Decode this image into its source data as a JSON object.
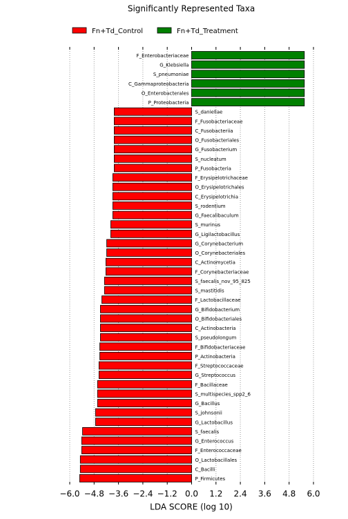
{
  "chart_data": {
    "type": "barh",
    "title": "Significantly Represented Taxa",
    "xlabel": "LDA SCORE (log 10)",
    "categories": [
      "F_Enterobacteriaceae",
      "G_Klebsiella",
      "S_pneumoniae",
      "C_Gammaproteobacteria",
      "O_Enterobacterales",
      "P_Proteobacteria",
      "S_daniellae",
      "F_Fusobacteriaceae",
      "C_Fusobacteriia",
      "O_Fusobacteriales",
      "G_Fusobacterium",
      "S_nucleatum",
      "P_Fusobacteria",
      "F_Erysipelotrichaceae",
      "O_Erysipelotrichales",
      "C_Erysipelotrichia",
      "S_rodentium",
      "G_Faecalibaculum",
      "S_murinus",
      "G_Ligilactobacillus",
      "G_Corynebacterium",
      "O_Corynebacteriales",
      "C_Actinomycetia",
      "F_Corynebacteriaceae",
      "S_faecalis_nov_95_825",
      "S_mastitidis",
      "F_Lactobacillaceae",
      "G_Bifidobacterium",
      "O_Bifidobacteriales",
      "C_Actinobacteria",
      "S_pseudolongum",
      "F_Bifidobacteriaceae",
      "P_Actinobacteria",
      "F_Streptococcaceae",
      "G_Streptococcus",
      "F_Bacillaceae",
      "S_multispecies_spp2_6",
      "G_Bacillus",
      "S_johnsonii",
      "G_Lactobacillus",
      "S_faecalis",
      "G_Enterococcus",
      "F_Enterococcaceae",
      "O_Lactobacillales",
      "C_Bacilli",
      "P_Firmicutes"
    ],
    "series": [
      {
        "name": "Fn+Td_Control",
        "color": "#ff0000",
        "values": [
          null,
          null,
          null,
          null,
          null,
          null,
          -3.81,
          -3.81,
          -3.81,
          -3.81,
          -3.81,
          -3.81,
          -3.81,
          -3.88,
          -3.88,
          -3.88,
          -3.88,
          -3.88,
          -3.98,
          -3.98,
          -4.18,
          -4.18,
          -4.22,
          -4.22,
          -4.29,
          -4.29,
          -4.42,
          -4.49,
          -4.49,
          -4.49,
          -4.49,
          -4.52,
          -4.52,
          -4.56,
          -4.56,
          -4.63,
          -4.63,
          -4.63,
          -4.73,
          -4.73,
          -5.37,
          -5.41,
          -5.41,
          -5.48,
          -5.48,
          -5.51
        ]
      },
      {
        "name": "Fn+Td_Treatment",
        "color": "#008000",
        "values": [
          5.55,
          5.55,
          5.55,
          5.55,
          5.55,
          5.55,
          null,
          null,
          null,
          null,
          null,
          null,
          null,
          null,
          null,
          null,
          null,
          null,
          null,
          null,
          null,
          null,
          null,
          null,
          null,
          null,
          null,
          null,
          null,
          null,
          null,
          null,
          null,
          null,
          null,
          null,
          null,
          null,
          null,
          null,
          null,
          null,
          null,
          null,
          null,
          null
        ]
      }
    ],
    "xlim": [
      -6.0,
      6.0
    ],
    "xticks": [
      {
        "value": -6.0,
        "label": "−6.0"
      },
      {
        "value": -4.8,
        "label": "−4.8"
      },
      {
        "value": -3.6,
        "label": "−3.6"
      },
      {
        "value": -2.4,
        "label": "−2.4"
      },
      {
        "value": -1.2,
        "label": "−1.2"
      },
      {
        "value": 0.0,
        "label": "0.0"
      },
      {
        "value": 1.2,
        "label": "1.2"
      },
      {
        "value": 2.4,
        "label": "2.4"
      },
      {
        "value": 3.6,
        "label": "3.6"
      },
      {
        "value": 4.8,
        "label": "4.8"
      },
      {
        "value": 6.0,
        "label": "6.0"
      }
    ],
    "grid": true
  }
}
